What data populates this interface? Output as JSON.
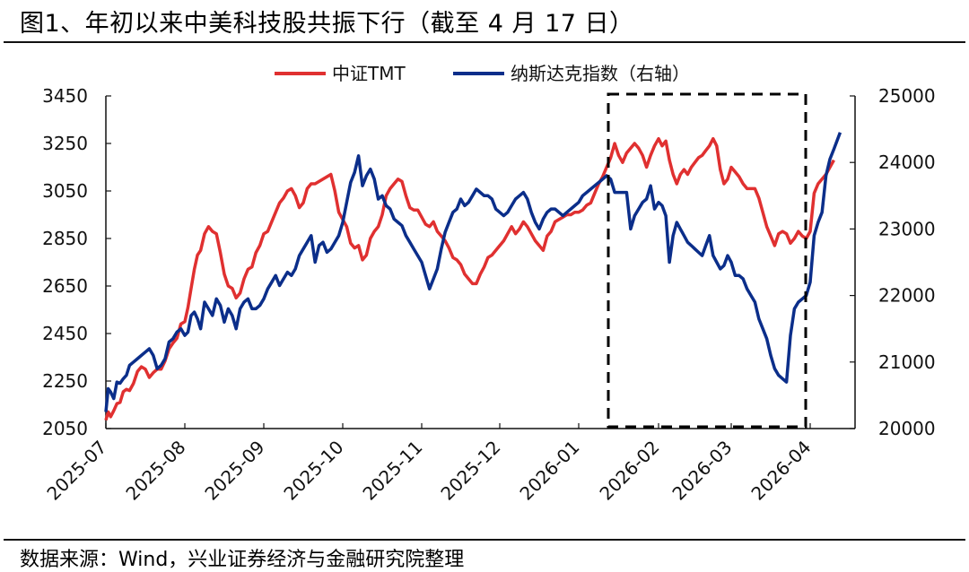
{
  "header": {
    "title": "图1、年初以来中美科技股共振下行（截至 4 月 17 日）"
  },
  "footer": {
    "source": "数据来源：Wind，兴业证券经济与金融研究院整理"
  },
  "colors": {
    "tmt": "#E03030",
    "nasdaq": "#0B2E8A",
    "axis": "#111111",
    "highlight_box": "#000000"
  },
  "chart_data": {
    "type": "line",
    "title": "图1、年初以来中美科技股共振下行（截至 4 月 17 日）",
    "xlabel": "",
    "ylabel": "",
    "y2label": "",
    "legend": [
      "中证TMT",
      "纳斯达克指数（右轴）"
    ],
    "legend_position": "top",
    "grid": false,
    "x_ticks": [
      "2025-07",
      "2025-08",
      "2025-09",
      "2025-10",
      "2025-11",
      "2025-12",
      "2026-01",
      "2026-02",
      "2026-03",
      "2026-04"
    ],
    "y_left": {
      "range": [
        2050,
        3450
      ],
      "ticks": [
        2050,
        2250,
        2450,
        2650,
        2850,
        3050,
        3250,
        3450
      ]
    },
    "y_right": {
      "range": [
        20000,
        25000
      ],
      "ticks": [
        20000,
        21000,
        22000,
        23000,
        24000,
        25000
      ]
    },
    "highlight_box": {
      "x_start": "2026-01-12",
      "x_end": "2026-04-01",
      "style": "dashed"
    },
    "series": [
      {
        "name": "中证TMT",
        "axis": "left",
        "x_month_frac": [
          0.0,
          0.03,
          0.06,
          0.1,
          0.14,
          0.18,
          0.22,
          0.26,
          0.3,
          0.35,
          0.4,
          0.45,
          0.5,
          0.55,
          0.6,
          0.65,
          0.7,
          0.75,
          0.8,
          0.85,
          0.9,
          0.95,
          1.0,
          1.04,
          1.08,
          1.12,
          1.16,
          1.2,
          1.25,
          1.3,
          1.35,
          1.4,
          1.45,
          1.5,
          1.55,
          1.6,
          1.65,
          1.7,
          1.75,
          1.8,
          1.85,
          1.9,
          1.95,
          2.0,
          2.05,
          2.1,
          2.15,
          2.2,
          2.25,
          2.3,
          2.35,
          2.4,
          2.45,
          2.5,
          2.55,
          2.6,
          2.65,
          2.7,
          2.75,
          2.8,
          2.85,
          2.9,
          2.95,
          3.0,
          3.05,
          3.1,
          3.15,
          3.2,
          3.25,
          3.3,
          3.35,
          3.4,
          3.45,
          3.5,
          3.55,
          3.6,
          3.65,
          3.7,
          3.75,
          3.8,
          3.85,
          3.9,
          3.95,
          4.0,
          4.05,
          4.1,
          4.15,
          4.2,
          4.25,
          4.3,
          4.35,
          4.4,
          4.45,
          4.5,
          4.55,
          4.6,
          4.65,
          4.7,
          4.75,
          4.8,
          4.85,
          4.9,
          4.95,
          5.0,
          5.05,
          5.1,
          5.15,
          5.2,
          5.25,
          5.3,
          5.35,
          5.4,
          5.45,
          5.5,
          5.55,
          5.6,
          5.65,
          5.7,
          5.75,
          5.8,
          5.85,
          5.9,
          5.95,
          6.0,
          6.05,
          6.1,
          6.15,
          6.2,
          6.25,
          6.3,
          6.35,
          6.4,
          6.45,
          6.5,
          6.55,
          6.6,
          6.65,
          6.7,
          6.75,
          6.8,
          6.85,
          6.9,
          6.95,
          7.0,
          7.05,
          7.1,
          7.15,
          7.2,
          7.25,
          7.3,
          7.35,
          7.4,
          7.45,
          7.5,
          7.55,
          7.6,
          7.65,
          7.7,
          7.75,
          7.8,
          7.85,
          7.9,
          7.95,
          8.0,
          8.05,
          8.1,
          8.15,
          8.2,
          8.25,
          8.3,
          8.35,
          8.4,
          8.45,
          8.5,
          8.55,
          8.6,
          8.65,
          8.7,
          8.75,
          8.8,
          8.85,
          8.9,
          8.95,
          9.0,
          9.05,
          9.1,
          9.15,
          9.2,
          9.25,
          9.3,
          9.38,
          9.45,
          9.5,
          9.55,
          9.57
        ],
        "values": [
          2085,
          2120,
          2100,
          2125,
          2155,
          2160,
          2205,
          2215,
          2210,
          2240,
          2290,
          2310,
          2300,
          2265,
          2285,
          2300,
          2300,
          2335,
          2385,
          2410,
          2430,
          2490,
          2500,
          2560,
          2640,
          2720,
          2780,
          2800,
          2870,
          2900,
          2880,
          2870,
          2790,
          2700,
          2650,
          2640,
          2600,
          2620,
          2680,
          2720,
          2730,
          2790,
          2820,
          2870,
          2880,
          2920,
          2960,
          3000,
          3020,
          3050,
          3060,
          3030,
          2980,
          3000,
          3060,
          3080,
          3080,
          3090,
          3100,
          3110,
          3120,
          3050,
          2960,
          2930,
          2900,
          2830,
          2810,
          2820,
          2760,
          2780,
          2850,
          2880,
          2900,
          2950,
          3030,
          3060,
          3080,
          3100,
          3090,
          3030,
          2980,
          2970,
          2970,
          2940,
          2910,
          2900,
          2920,
          2880,
          2860,
          2840,
          2810,
          2770,
          2760,
          2740,
          2700,
          2680,
          2660,
          2660,
          2700,
          2730,
          2770,
          2780,
          2800,
          2820,
          2840,
          2870,
          2900,
          2870,
          2890,
          2920,
          2900,
          2870,
          2840,
          2820,
          2800,
          2860,
          2880,
          2920,
          2930,
          2940,
          2950,
          2950,
          2960,
          2960,
          2970,
          2990,
          3000,
          3040,
          3080,
          3110,
          3150,
          3190,
          3250,
          3200,
          3170,
          3210,
          3230,
          3250,
          3230,
          3200,
          3150,
          3200,
          3240,
          3270,
          3240,
          3260,
          3180,
          3120,
          3080,
          3120,
          3140,
          3120,
          3150,
          3170,
          3190,
          3200,
          3220,
          3240,
          3270,
          3240,
          3140,
          3080,
          3100,
          3150,
          3130,
          3110,
          3080,
          3060,
          3060,
          3060,
          3020,
          2960,
          2900,
          2860,
          2820,
          2870,
          2880,
          2870,
          2830,
          2850,
          2880,
          2860,
          2850,
          2880,
          3040,
          3080,
          3100,
          3120,
          3150,
          3180
        ]
      },
      {
        "name": "纳斯达克指数（右轴）",
        "axis": "right",
        "x_month_frac": [
          0.0,
          0.03,
          0.06,
          0.1,
          0.14,
          0.18,
          0.22,
          0.26,
          0.3,
          0.35,
          0.4,
          0.45,
          0.5,
          0.55,
          0.6,
          0.65,
          0.7,
          0.75,
          0.8,
          0.85,
          0.9,
          0.95,
          1.0,
          1.04,
          1.08,
          1.12,
          1.16,
          1.2,
          1.25,
          1.3,
          1.35,
          1.4,
          1.45,
          1.5,
          1.55,
          1.6,
          1.65,
          1.7,
          1.75,
          1.8,
          1.85,
          1.9,
          1.95,
          2.0,
          2.05,
          2.1,
          2.15,
          2.2,
          2.25,
          2.3,
          2.35,
          2.4,
          2.45,
          2.5,
          2.55,
          2.6,
          2.65,
          2.7,
          2.75,
          2.8,
          2.85,
          2.9,
          2.95,
          3.0,
          3.05,
          3.1,
          3.15,
          3.2,
          3.25,
          3.3,
          3.35,
          3.4,
          3.45,
          3.5,
          3.55,
          3.6,
          3.65,
          3.7,
          3.75,
          3.8,
          3.85,
          3.9,
          3.95,
          4.0,
          4.05,
          4.1,
          4.15,
          4.2,
          4.25,
          4.3,
          4.35,
          4.4,
          4.45,
          4.5,
          4.55,
          4.6,
          4.65,
          4.7,
          4.75,
          4.8,
          4.85,
          4.9,
          4.95,
          5.0,
          5.05,
          5.1,
          5.15,
          5.2,
          5.25,
          5.3,
          5.35,
          5.4,
          5.45,
          5.5,
          5.55,
          5.6,
          5.65,
          5.7,
          5.75,
          5.8,
          5.85,
          5.9,
          5.95,
          6.0,
          6.05,
          6.1,
          6.15,
          6.2,
          6.25,
          6.3,
          6.35,
          6.4,
          6.45,
          6.5,
          6.55,
          6.6,
          6.65,
          6.7,
          6.75,
          6.8,
          6.85,
          6.9,
          6.95,
          7.0,
          7.05,
          7.1,
          7.15,
          7.2,
          7.25,
          7.3,
          7.35,
          7.4,
          7.45,
          7.5,
          7.55,
          7.6,
          7.65,
          7.7,
          7.75,
          7.8,
          7.85,
          7.9,
          7.95,
          8.0,
          8.05,
          8.1,
          8.15,
          8.2,
          8.25,
          8.3,
          8.35,
          8.4,
          8.45,
          8.5,
          8.55,
          8.6,
          8.65,
          8.7,
          8.75,
          8.8,
          8.85,
          8.9,
          8.95,
          9.0,
          9.05,
          9.1,
          9.15,
          9.2,
          9.25,
          9.3,
          9.38,
          9.45,
          9.5,
          9.55,
          9.57
        ],
        "values": [
          20250,
          20600,
          20550,
          20450,
          20700,
          20680,
          20750,
          20800,
          20950,
          21000,
          21050,
          21100,
          21150,
          21200,
          21100,
          20900,
          20950,
          21050,
          21300,
          21350,
          21450,
          21500,
          21400,
          21450,
          21700,
          21750,
          21650,
          21500,
          21900,
          21800,
          21700,
          21950,
          21850,
          21600,
          21800,
          21700,
          21500,
          21800,
          21900,
          21950,
          21800,
          21800,
          21850,
          21950,
          22100,
          22200,
          22300,
          22150,
          22250,
          22350,
          22300,
          22400,
          22600,
          22700,
          22800,
          22900,
          22500,
          22750,
          22800,
          22650,
          22700,
          22800,
          22900,
          23100,
          23400,
          23700,
          23850,
          24100,
          23650,
          23800,
          23900,
          23750,
          23450,
          23500,
          23350,
          23300,
          23150,
          23100,
          23050,
          22900,
          22800,
          22700,
          22600,
          22500,
          22300,
          22100,
          22250,
          22400,
          22700,
          22950,
          23100,
          23250,
          23300,
          23450,
          23350,
          23400,
          23500,
          23600,
          23550,
          23500,
          23500,
          23450,
          23300,
          23250,
          23200,
          23250,
          23350,
          23450,
          23500,
          23550,
          23450,
          23250,
          23100,
          23000,
          23150,
          23250,
          23300,
          23300,
          23250,
          23200,
          23250,
          23300,
          23350,
          23400,
          23500,
          23550,
          23600,
          23650,
          23700,
          23750,
          23800,
          23750,
          23550,
          23550,
          23550,
          23550,
          23000,
          23200,
          23300,
          23400,
          23450,
          23650,
          23300,
          23400,
          23350,
          23200,
          22500,
          22900,
          23100,
          23000,
          22900,
          22800,
          22750,
          22700,
          22650,
          22600,
          22750,
          22900,
          22600,
          22500,
          22400,
          22450,
          22600,
          22500,
          22300,
          22300,
          22250,
          22100,
          22000,
          21900,
          21650,
          21500,
          21350,
          21100,
          20900,
          20800,
          20750,
          20700,
          21400,
          21800,
          21900,
          21950,
          22000,
          22200,
          22900,
          23100,
          23250,
          23800,
          24050,
          24200,
          24450
        ]
      }
    ]
  }
}
